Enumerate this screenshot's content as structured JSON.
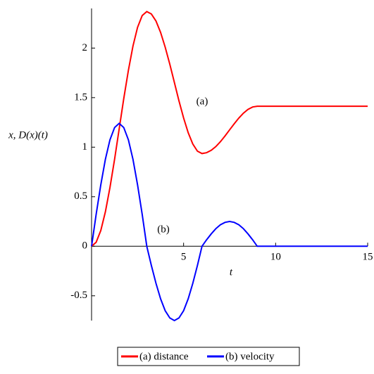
{
  "chart_data": {
    "type": "line",
    "xlabel": "t",
    "ylabel": "x, D(x)(t)",
    "annotations": [
      "(a)",
      "(b)"
    ],
    "x": [
      0,
      0.25,
      0.5,
      0.75,
      1,
      1.25,
      1.5,
      1.75,
      2,
      2.25,
      2.5,
      2.75,
      3,
      3.25,
      3.5,
      3.75,
      4,
      4.25,
      4.5,
      4.75,
      5,
      5.25,
      5.5,
      5.75,
      6,
      6.25,
      6.5,
      6.75,
      7,
      7.25,
      7.5,
      7.75,
      8,
      8.25,
      8.5,
      8.75,
      9,
      15
    ],
    "series": [
      {
        "name": "(a) distance",
        "color": "#ff0000",
        "values": [
          0,
          0.04,
          0.159,
          0.347,
          0.592,
          0.878,
          1.184,
          1.49,
          1.776,
          2.021,
          2.209,
          2.328,
          2.368,
          2.344,
          2.272,
          2.158,
          2.01,
          1.837,
          1.652,
          1.467,
          1.294,
          1.146,
          1.032,
          0.96,
          0.936,
          0.944,
          0.968,
          1.006,
          1.055,
          1.113,
          1.175,
          1.236,
          1.294,
          1.343,
          1.381,
          1.405,
          1.413,
          1.413
        ]
      },
      {
        "name": "(b) velocity",
        "color": "#0000ff",
        "values": [
          0,
          0.321,
          0.62,
          0.877,
          1.074,
          1.198,
          1.24,
          1.198,
          1.074,
          0.877,
          0.62,
          0.321,
          0,
          -0.194,
          -0.375,
          -0.53,
          -0.65,
          -0.724,
          -0.75,
          -0.724,
          -0.65,
          -0.53,
          -0.375,
          -0.194,
          0,
          0.065,
          0.125,
          0.177,
          0.217,
          0.241,
          0.25,
          0.241,
          0.217,
          0.177,
          0.125,
          0.065,
          0,
          0
        ]
      }
    ],
    "xlim": [
      0,
      15
    ],
    "ylim": [
      -0.75,
      2.4
    ],
    "xticks": [
      5,
      10,
      15
    ],
    "yticks": [
      -0.5,
      0,
      0.5,
      1,
      1.5,
      2
    ],
    "legend": "bottom"
  }
}
